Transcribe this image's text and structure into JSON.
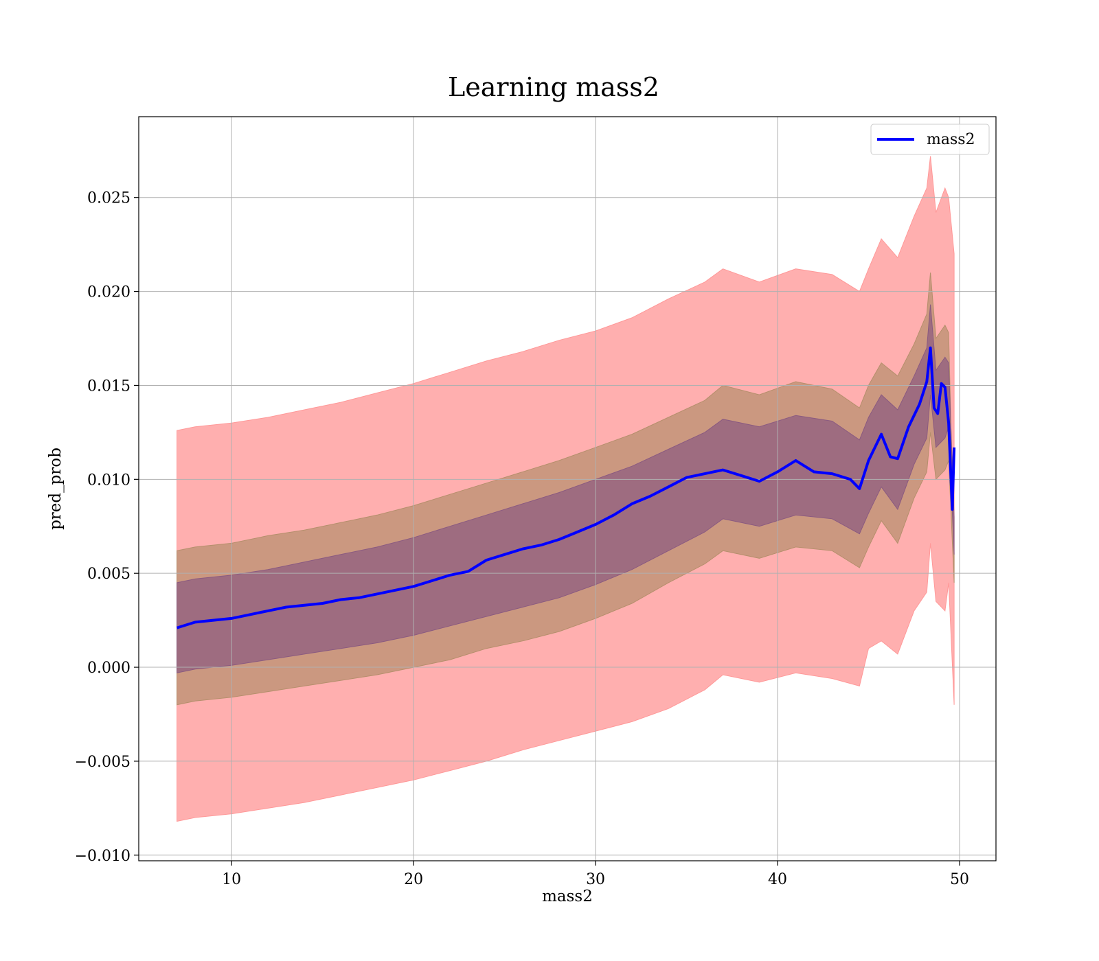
{
  "chart_data": {
    "type": "line",
    "title": "Learning mass2",
    "xlabel": "mass2",
    "ylabel": "pred_prob",
    "xlim": [
      4.9,
      52
    ],
    "ylim": [
      -0.0103,
      0.0293
    ],
    "grid": true,
    "legend": {
      "position": "top-right",
      "entries": [
        "mass2"
      ]
    },
    "x_ticks": [
      10,
      20,
      30,
      40,
      50
    ],
    "x_tick_labels": [
      "10",
      "20",
      "30",
      "40",
      "50"
    ],
    "y_ticks": [
      -0.01,
      -0.005,
      0.0,
      0.005,
      0.01,
      0.015,
      0.02,
      0.025
    ],
    "y_tick_labels": [
      "−0.010",
      "−0.005",
      "0.000",
      "0.005",
      "0.010",
      "0.015",
      "0.020",
      "0.025"
    ],
    "series": [
      {
        "name": "mass2",
        "color": "#0000ff",
        "x": [
          7.0,
          8.0,
          9.0,
          10.0,
          11.0,
          12.0,
          13.0,
          14.0,
          15.0,
          16.0,
          17.0,
          18.0,
          19.0,
          20.0,
          21.0,
          22.0,
          23.0,
          24.0,
          25.0,
          26.0,
          27.0,
          28.0,
          29.0,
          30.0,
          31.0,
          32.0,
          33.0,
          34.0,
          35.0,
          36.0,
          37.0,
          38.0,
          39.0,
          40.0,
          41.0,
          42.0,
          43.0,
          44.0,
          44.5,
          45.0,
          45.7,
          46.2,
          46.6,
          47.2,
          47.8,
          48.2,
          48.4,
          48.6,
          48.8,
          49.0,
          49.2,
          49.4,
          49.6,
          49.7
        ],
        "y": [
          0.0021,
          0.0024,
          0.0025,
          0.0026,
          0.0028,
          0.003,
          0.0032,
          0.0033,
          0.0034,
          0.0036,
          0.0037,
          0.0039,
          0.0041,
          0.0043,
          0.0046,
          0.0049,
          0.0051,
          0.0057,
          0.006,
          0.0063,
          0.0065,
          0.0068,
          0.0072,
          0.0076,
          0.0081,
          0.0087,
          0.0091,
          0.0096,
          0.0101,
          0.0103,
          0.0105,
          0.0102,
          0.0099,
          0.0104,
          0.011,
          0.0104,
          0.0103,
          0.01,
          0.0095,
          0.011,
          0.0124,
          0.0112,
          0.0111,
          0.0128,
          0.014,
          0.0152,
          0.017,
          0.0138,
          0.0135,
          0.0151,
          0.0149,
          0.013,
          0.0084,
          0.0117
        ]
      }
    ],
    "bands": [
      {
        "name": "outer band",
        "color": "#ff9999",
        "x": [
          7.0,
          8.0,
          10.0,
          12.0,
          14.0,
          16.0,
          18.0,
          20.0,
          22.0,
          24.0,
          26.0,
          28.0,
          30.0,
          32.0,
          34.0,
          36.0,
          37.0,
          39.0,
          41.0,
          43.0,
          44.5,
          45.0,
          45.7,
          46.6,
          47.5,
          48.2,
          48.4,
          48.7,
          49.2,
          49.4,
          49.7
        ],
        "lower": [
          -0.0082,
          -0.008,
          -0.0078,
          -0.0075,
          -0.0072,
          -0.0068,
          -0.0064,
          -0.006,
          -0.0055,
          -0.005,
          -0.0044,
          -0.0039,
          -0.0034,
          -0.0029,
          -0.0022,
          -0.0012,
          -0.0004,
          -0.0008,
          -0.0003,
          -0.0006,
          -0.001,
          0.001,
          0.0014,
          0.0007,
          0.003,
          0.004,
          0.0066,
          0.0035,
          0.003,
          0.0045,
          -0.002
        ],
        "upper": [
          0.0126,
          0.0128,
          0.013,
          0.0133,
          0.0137,
          0.0141,
          0.0146,
          0.0151,
          0.0157,
          0.0163,
          0.0168,
          0.0174,
          0.0179,
          0.0186,
          0.0196,
          0.0205,
          0.0212,
          0.0205,
          0.0212,
          0.0209,
          0.02,
          0.0212,
          0.0228,
          0.0218,
          0.024,
          0.0255,
          0.0272,
          0.0242,
          0.0255,
          0.025,
          0.022
        ]
      },
      {
        "name": "middle band",
        "color": "#b58f6c",
        "x": [
          7.0,
          8.0,
          10.0,
          12.0,
          14.0,
          16.0,
          18.0,
          20.0,
          22.0,
          24.0,
          26.0,
          28.0,
          30.0,
          32.0,
          34.0,
          36.0,
          37.0,
          39.0,
          41.0,
          43.0,
          44.5,
          45.0,
          45.7,
          46.6,
          47.5,
          48.2,
          48.4,
          48.7,
          49.2,
          49.4,
          49.7
        ],
        "lower": [
          -0.002,
          -0.0018,
          -0.0016,
          -0.0013,
          -0.001,
          -0.0007,
          -0.0004,
          0.0,
          0.0004,
          0.001,
          0.0014,
          0.0019,
          0.0026,
          0.0034,
          0.0045,
          0.0055,
          0.0062,
          0.0058,
          0.0064,
          0.0062,
          0.0053,
          0.0064,
          0.0078,
          0.0066,
          0.009,
          0.0104,
          0.0125,
          0.01,
          0.0105,
          0.011,
          0.0045
        ],
        "upper": [
          0.0062,
          0.0064,
          0.0066,
          0.007,
          0.0073,
          0.0077,
          0.0081,
          0.0086,
          0.0092,
          0.0098,
          0.0104,
          0.011,
          0.0117,
          0.0124,
          0.0133,
          0.0142,
          0.015,
          0.0145,
          0.0152,
          0.0148,
          0.0138,
          0.015,
          0.0162,
          0.0155,
          0.0172,
          0.0188,
          0.021,
          0.0175,
          0.0182,
          0.0178,
          0.006
        ]
      },
      {
        "name": "inner band",
        "color": "#8a5a80",
        "x": [
          7.0,
          8.0,
          10.0,
          12.0,
          14.0,
          16.0,
          18.0,
          20.0,
          22.0,
          24.0,
          26.0,
          28.0,
          30.0,
          32.0,
          34.0,
          36.0,
          37.0,
          39.0,
          41.0,
          43.0,
          44.5,
          45.0,
          45.7,
          46.6,
          47.5,
          48.2,
          48.4,
          48.7,
          49.2,
          49.4,
          49.7
        ],
        "lower": [
          -0.0003,
          -0.0001,
          0.0001,
          0.0004,
          0.0007,
          0.001,
          0.0013,
          0.0017,
          0.0022,
          0.0027,
          0.0032,
          0.0037,
          0.0044,
          0.0052,
          0.0062,
          0.0072,
          0.0079,
          0.0075,
          0.0081,
          0.0079,
          0.0071,
          0.0082,
          0.0096,
          0.0084,
          0.0108,
          0.0122,
          0.0145,
          0.0117,
          0.0122,
          0.0128,
          0.006
        ],
        "upper": [
          0.0045,
          0.0047,
          0.0049,
          0.0052,
          0.0056,
          0.006,
          0.0064,
          0.0069,
          0.0075,
          0.0081,
          0.0087,
          0.0093,
          0.01,
          0.0107,
          0.0116,
          0.0125,
          0.0132,
          0.0128,
          0.0134,
          0.0131,
          0.0121,
          0.0133,
          0.0145,
          0.0137,
          0.0155,
          0.017,
          0.0193,
          0.0158,
          0.0165,
          0.0162,
          0.008
        ]
      }
    ]
  }
}
